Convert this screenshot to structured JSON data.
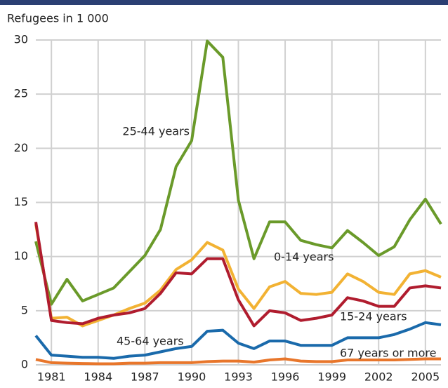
{
  "chart_data": {
    "type": "line",
    "y_label": "Refugees in 1 000",
    "x": [
      1980,
      1981,
      1982,
      1983,
      1984,
      1985,
      1986,
      1987,
      1988,
      1989,
      1990,
      1991,
      1992,
      1993,
      1994,
      1995,
      1996,
      1997,
      1998,
      1999,
      2000,
      2001,
      2002,
      2003,
      2004,
      2005,
      2006
    ],
    "xlim": [
      1980,
      2006
    ],
    "xticks": [
      1981,
      1984,
      1987,
      1990,
      1993,
      1996,
      1999,
      2002,
      2005
    ],
    "ylim": [
      0,
      30
    ],
    "yticks": [
      0,
      5,
      10,
      15,
      20,
      25,
      30
    ],
    "grid": true,
    "series": [
      {
        "name": "25-44 years",
        "color": "#6a9a2a",
        "values": [
          11.4,
          5.6,
          7.9,
          5.9,
          6.5,
          7.1,
          8.6,
          10.1,
          12.5,
          18.3,
          20.7,
          29.9,
          28.4,
          15.2,
          9.8,
          13.2,
          13.2,
          11.5,
          11.1,
          10.8,
          12.4,
          11.3,
          10.1,
          10.9,
          13.4,
          15.3,
          13.0
        ]
      },
      {
        "name": "0-14 years",
        "color": "#f2b233",
        "values": [
          13.0,
          4.3,
          4.4,
          3.6,
          4.1,
          4.6,
          5.2,
          5.7,
          6.9,
          8.8,
          9.7,
          11.3,
          10.6,
          7.0,
          5.2,
          7.2,
          7.7,
          6.6,
          6.5,
          6.7,
          8.4,
          7.7,
          6.7,
          6.5,
          8.4,
          8.7,
          8.1
        ]
      },
      {
        "name": "15-24 years",
        "color": "#b01c2e",
        "values": [
          13.2,
          4.1,
          3.9,
          3.8,
          4.3,
          4.6,
          4.8,
          5.2,
          6.6,
          8.5,
          8.4,
          9.8,
          9.8,
          6.0,
          3.6,
          5.0,
          4.8,
          4.1,
          4.3,
          4.6,
          6.2,
          5.9,
          5.4,
          5.4,
          7.1,
          7.3,
          7.1
        ]
      },
      {
        "name": "45-64 years",
        "color": "#1a6aab",
        "values": [
          2.7,
          0.9,
          0.8,
          0.7,
          0.7,
          0.6,
          0.8,
          0.9,
          1.2,
          1.5,
          1.7,
          3.1,
          3.2,
          2.0,
          1.5,
          2.2,
          2.2,
          1.8,
          1.8,
          1.8,
          2.5,
          2.5,
          2.5,
          2.8,
          3.3,
          3.9,
          3.7
        ]
      },
      {
        "name": "67 years or more",
        "color": "#e8762b",
        "values": [
          0.5,
          0.2,
          0.15,
          0.12,
          0.1,
          0.1,
          0.15,
          0.15,
          0.2,
          0.2,
          0.2,
          0.3,
          0.35,
          0.35,
          0.25,
          0.45,
          0.55,
          0.35,
          0.3,
          0.3,
          0.45,
          0.45,
          0.45,
          0.45,
          0.5,
          0.55,
          0.55
        ]
      }
    ]
  }
}
